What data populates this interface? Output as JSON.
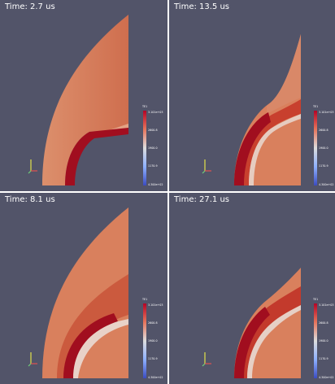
{
  "panels": [
    {
      "id": "p1",
      "time_label": "Time: 2.7 us",
      "state": "early"
    },
    {
      "id": "p2",
      "time_label": "Time: 13.5 us",
      "state": "late"
    },
    {
      "id": "p3",
      "time_label": "Time: 8.1 us",
      "state": "mid"
    },
    {
      "id": "p4",
      "time_label": "Time: 27.1 us",
      "state": "final"
    }
  ],
  "colorbar": {
    "title": "TE1",
    "ticks": [
      "3.101e+03",
      "2600.8",
      "1900.0",
      "1170.9",
      "4.300e+02"
    ]
  },
  "colors": {
    "background": "#525469",
    "separator": "#ffffff",
    "colormap_high": "#b40426",
    "colormap_mid": "#dddddd",
    "colormap_low": "#3b4cc0",
    "fluid": "#d9805d",
    "hot_layer": "#9a0d1c",
    "axis_y": "#e2e24a",
    "axis_x": "#e05050",
    "axis_z": "#6fd07a"
  }
}
